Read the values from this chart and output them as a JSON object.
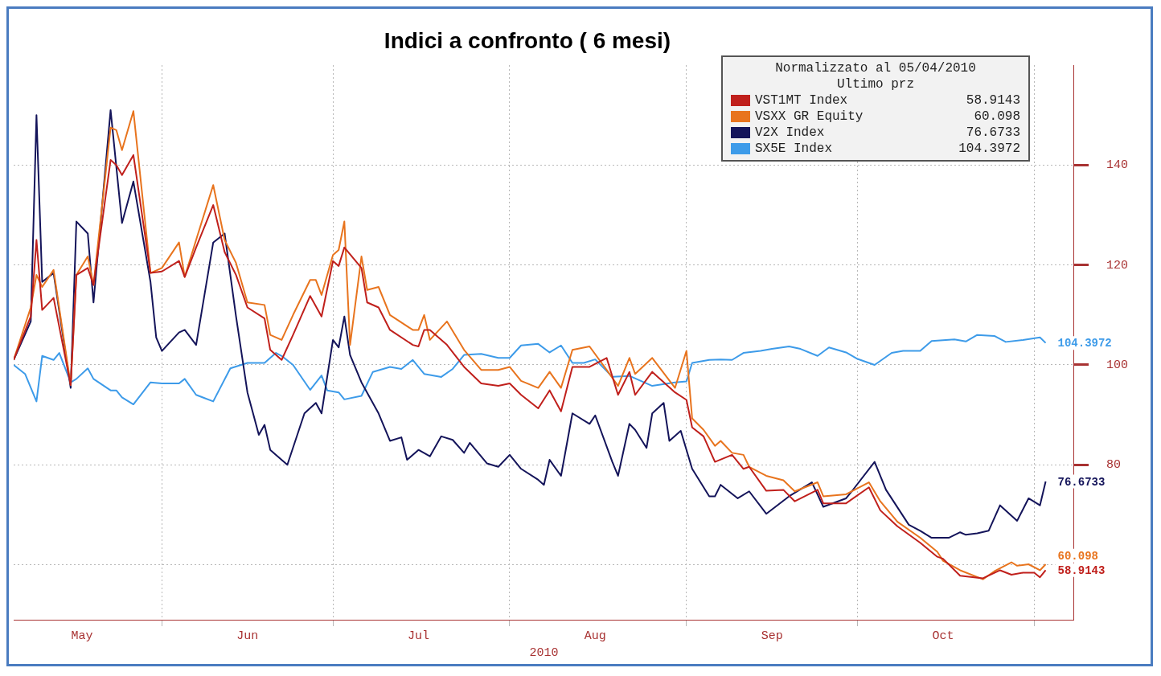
{
  "chart_data": {
    "type": "line",
    "title": "Indici a confronto ( 6 mesi)",
    "xlabel": "2010",
    "legend_title": "Normalizzato al 05/04/2010\nUltimo prz",
    "legend": "top right",
    "grid": true,
    "xlim": [
      "2010-05-06",
      "2010-11-08"
    ],
    "xticks": [
      {
        "value": "2010-05-18",
        "label": "May"
      },
      {
        "value": "2010-06-01",
        "label": null
      },
      {
        "value": "2010-06-16",
        "label": "Jun"
      },
      {
        "value": "2010-07-01",
        "label": null
      },
      {
        "value": "2010-07-16",
        "label": "Jul"
      },
      {
        "value": "2010-08-01",
        "label": null
      },
      {
        "value": "2010-08-16",
        "label": "Aug"
      },
      {
        "value": "2010-09-01",
        "label": null
      },
      {
        "value": "2010-09-16",
        "label": "Sep"
      },
      {
        "value": "2010-10-01",
        "label": null
      },
      {
        "value": "2010-10-16",
        "label": "Oct"
      },
      {
        "value": "2010-11-01",
        "label": null
      }
    ],
    "ylim": [
      49,
      160
    ],
    "yticks": [
      {
        "value": 60,
        "label": null
      },
      80,
      100,
      120,
      140
    ],
    "series": [
      {
        "name": "VST1MT Index",
        "color": "#c0201c",
        "x": [
          "2010-05-06",
          "2010-05-09",
          "2010-05-10",
          "2010-05-11",
          "2010-05-13",
          "2010-05-16",
          "2010-05-17",
          "2010-05-19",
          "2010-05-20",
          "2010-05-23",
          "2010-05-24",
          "2010-05-25",
          "2010-05-27",
          "2010-05-30",
          "2010-06-01",
          "2010-06-04",
          "2010-06-05",
          "2010-06-07",
          "2010-06-10",
          "2010-06-12",
          "2010-06-14",
          "2010-06-16",
          "2010-06-19",
          "2010-06-20",
          "2010-06-22",
          "2010-06-24",
          "2010-06-27",
          "2010-06-29",
          "2010-07-01",
          "2010-07-02",
          "2010-07-03",
          "2010-07-06",
          "2010-07-07",
          "2010-07-09",
          "2010-07-11",
          "2010-07-15",
          "2010-07-16",
          "2010-07-17",
          "2010-07-18",
          "2010-07-21",
          "2010-07-24",
          "2010-07-27",
          "2010-07-30",
          "2010-08-01",
          "2010-08-03",
          "2010-08-06",
          "2010-08-08",
          "2010-08-10",
          "2010-08-12",
          "2010-08-15",
          "2010-08-18",
          "2010-08-20",
          "2010-08-22",
          "2010-08-23",
          "2010-08-26",
          "2010-08-30",
          "2010-09-01",
          "2010-09-02",
          "2010-09-04",
          "2010-09-06",
          "2010-09-09",
          "2010-09-11",
          "2010-09-12",
          "2010-09-15",
          "2010-09-18",
          "2010-09-20",
          "2010-09-24",
          "2010-09-25",
          "2010-09-29",
          "2010-10-03",
          "2010-10-05",
          "2010-10-08",
          "2010-10-12",
          "2010-10-15",
          "2010-10-16",
          "2010-10-19",
          "2010-10-23",
          "2010-10-26",
          "2010-10-28",
          "2010-10-30",
          "2010-11-01",
          "2010-11-02",
          "2010-11-03"
        ],
        "values": [
          101,
          109.7,
          125,
          111,
          113.4,
          96,
          118,
          119.4,
          116,
          141,
          140,
          138,
          142,
          118.4,
          118.7,
          120.8,
          117.6,
          123.5,
          132,
          122.6,
          118,
          111.5,
          109.3,
          103,
          101,
          106,
          113.8,
          109.7,
          120.8,
          119.8,
          123.5,
          119.4,
          112.5,
          111.5,
          107,
          104,
          103.7,
          107,
          107,
          104,
          99.6,
          96.3,
          95.8,
          96.3,
          94,
          91.3,
          94.9,
          90.7,
          99.6,
          99.6,
          101.4,
          94,
          98.6,
          94,
          98.6,
          94.5,
          93,
          87.5,
          85.7,
          80.6,
          82,
          79.2,
          79.6,
          74.8,
          75,
          72.7,
          75,
          72.3,
          72.3,
          75.5,
          70.9,
          67.7,
          64.4,
          61.6,
          61.2,
          57.8,
          57.3,
          58.9,
          58,
          58.4,
          58.4,
          57.5,
          58.9143
        ],
        "value_labels": [
          null,
          null,
          null,
          null,
          null,
          null,
          null,
          null,
          null,
          null,
          null,
          null,
          null,
          null,
          null,
          null,
          null,
          null,
          null,
          null,
          null,
          null,
          null,
          null,
          null,
          null,
          null,
          null,
          null,
          null,
          null,
          null,
          null,
          null,
          null,
          null,
          null,
          null,
          null,
          null,
          null,
          null,
          null,
          null,
          null,
          null,
          null,
          null,
          null,
          null,
          null,
          null,
          null,
          null,
          null,
          null,
          null,
          null,
          null,
          null,
          null,
          null,
          null,
          null,
          null,
          null,
          null,
          null,
          null,
          null,
          null,
          null,
          null,
          null,
          null,
          null,
          null,
          null,
          null,
          null,
          null,
          null,
          "58.9143"
        ]
      },
      {
        "name": "VSXX GR Equity",
        "color": "#e8741e",
        "x": [
          "2010-05-06",
          "2010-05-09",
          "2010-05-10",
          "2010-05-11",
          "2010-05-13",
          "2010-05-16",
          "2010-05-17",
          "2010-05-19",
          "2010-05-20",
          "2010-05-23",
          "2010-05-24",
          "2010-05-25",
          "2010-05-27",
          "2010-05-30",
          "2010-06-01",
          "2010-06-04",
          "2010-06-05",
          "2010-06-07",
          "2010-06-10",
          "2010-06-12",
          "2010-06-14",
          "2010-06-16",
          "2010-06-19",
          "2010-06-20",
          "2010-06-22",
          "2010-06-24",
          "2010-06-27",
          "2010-06-28",
          "2010-06-29",
          "2010-07-01",
          "2010-07-02",
          "2010-07-03",
          "2010-07-04",
          "2010-07-06",
          "2010-07-07",
          "2010-07-09",
          "2010-07-11",
          "2010-07-15",
          "2010-07-16",
          "2010-07-17",
          "2010-07-18",
          "2010-07-21",
          "2010-07-24",
          "2010-07-27",
          "2010-07-30",
          "2010-08-01",
          "2010-08-03",
          "2010-08-06",
          "2010-08-08",
          "2010-08-10",
          "2010-08-12",
          "2010-08-15",
          "2010-08-18",
          "2010-08-20",
          "2010-08-22",
          "2010-08-23",
          "2010-08-26",
          "2010-08-30",
          "2010-09-01",
          "2010-09-02",
          "2010-09-04",
          "2010-09-06",
          "2010-09-07",
          "2010-09-09",
          "2010-09-11",
          "2010-09-12",
          "2010-09-15",
          "2010-09-18",
          "2010-09-20",
          "2010-09-24",
          "2010-09-25",
          "2010-09-29",
          "2010-10-03",
          "2010-10-05",
          "2010-10-08",
          "2010-10-12",
          "2010-10-15",
          "2010-10-16",
          "2010-10-19",
          "2010-10-23",
          "2010-10-25",
          "2010-10-28",
          "2010-10-29",
          "2010-10-31",
          "2010-11-02",
          "2010-11-03"
        ],
        "values": [
          101,
          111.5,
          118,
          115.6,
          119,
          96,
          118,
          121.7,
          116,
          147.5,
          147,
          143,
          150.8,
          118.4,
          119.4,
          124.5,
          117.6,
          125,
          136,
          125,
          120.4,
          112.5,
          112,
          106,
          105,
          110,
          117,
          117,
          114,
          122,
          123,
          128.7,
          104,
          121.7,
          115,
          115.6,
          110,
          107,
          107,
          110,
          105,
          108.7,
          103,
          99,
          99,
          99.6,
          96.8,
          95.4,
          98.6,
          95.4,
          103,
          103.7,
          99,
          95.8,
          101.4,
          98.2,
          101.4,
          95.4,
          102.8,
          89.3,
          87,
          83.8,
          84.8,
          82.4,
          82,
          79.6,
          77.8,
          76.9,
          74.7,
          76.5,
          73.7,
          74.1,
          76.5,
          72.7,
          68.6,
          65.4,
          62.6,
          60.8,
          58.9,
          57.1,
          58.7,
          60.5,
          59.8,
          60.1,
          58.9,
          60.098
        ],
        "value_labels": [
          null,
          null,
          null,
          null,
          null,
          null,
          null,
          null,
          null,
          null,
          null,
          null,
          null,
          null,
          null,
          null,
          null,
          null,
          null,
          null,
          null,
          null,
          null,
          null,
          null,
          null,
          null,
          null,
          null,
          null,
          null,
          null,
          null,
          null,
          null,
          null,
          null,
          null,
          null,
          null,
          null,
          null,
          null,
          null,
          null,
          null,
          null,
          null,
          null,
          null,
          null,
          null,
          null,
          null,
          null,
          null,
          null,
          null,
          null,
          null,
          null,
          null,
          null,
          null,
          null,
          null,
          null,
          null,
          null,
          null,
          null,
          null,
          null,
          null,
          null,
          null,
          null,
          null,
          null,
          null,
          null,
          null,
          null,
          null,
          null,
          "60.098"
        ]
      },
      {
        "name": "V2X Index",
        "color": "#14145a",
        "x": [
          "2010-05-06",
          "2010-05-09",
          "2010-05-10",
          "2010-05-11",
          "2010-05-13",
          "2010-05-16",
          "2010-05-17",
          "2010-05-19",
          "2010-05-20",
          "2010-05-23",
          "2010-05-25",
          "2010-05-27",
          "2010-05-30",
          "2010-05-31",
          "2010-06-01",
          "2010-06-04",
          "2010-06-05",
          "2010-06-07",
          "2010-06-10",
          "2010-06-12",
          "2010-06-14",
          "2010-06-16",
          "2010-06-18",
          "2010-06-19",
          "2010-06-20",
          "2010-06-23",
          "2010-06-26",
          "2010-06-28",
          "2010-06-29",
          "2010-07-01",
          "2010-07-02",
          "2010-07-03",
          "2010-07-04",
          "2010-07-06",
          "2010-07-09",
          "2010-07-11",
          "2010-07-13",
          "2010-07-14",
          "2010-07-16",
          "2010-07-18",
          "2010-07-20",
          "2010-07-22",
          "2010-07-24",
          "2010-07-25",
          "2010-07-28",
          "2010-07-30",
          "2010-08-01",
          "2010-08-03",
          "2010-08-06",
          "2010-08-07",
          "2010-08-08",
          "2010-08-10",
          "2010-08-12",
          "2010-08-15",
          "2010-08-16",
          "2010-08-19",
          "2010-08-20",
          "2010-08-22",
          "2010-08-23",
          "2010-08-25",
          "2010-08-26",
          "2010-08-28",
          "2010-08-29",
          "2010-08-31",
          "2010-09-02",
          "2010-09-05",
          "2010-09-06",
          "2010-09-07",
          "2010-09-10",
          "2010-09-12",
          "2010-09-15",
          "2010-09-19",
          "2010-09-23",
          "2010-09-25",
          "2010-09-29",
          "2010-09-30",
          "2010-10-04",
          "2010-10-06",
          "2010-10-10",
          "2010-10-12",
          "2010-10-14",
          "2010-10-17",
          "2010-10-19",
          "2010-10-20",
          "2010-10-22",
          "2010-10-24",
          "2010-10-26",
          "2010-10-29",
          "2010-10-31",
          "2010-11-02",
          "2010-11-03"
        ],
        "values": [
          101,
          108.7,
          150,
          116.6,
          118.4,
          95.4,
          128.7,
          126.3,
          112.5,
          151,
          128.4,
          136.7,
          116.6,
          105.5,
          102.8,
          106.5,
          107,
          104,
          124.5,
          126.3,
          109.7,
          94.5,
          86,
          88,
          83,
          80,
          90.3,
          92.4,
          90.3,
          105,
          103.5,
          109.7,
          102,
          96.5,
          90.3,
          84.8,
          85.5,
          81,
          83,
          81.7,
          85.7,
          85,
          82.4,
          84.4,
          80.3,
          79.6,
          82,
          79.2,
          77,
          76,
          81,
          77.8,
          90.3,
          88.2,
          89.9,
          80.6,
          77.8,
          88.2,
          87,
          83.4,
          90.3,
          92.4,
          84.8,
          86.8,
          79.2,
          73.7,
          73.7,
          76,
          73.3,
          74.7,
          70.2,
          73.7,
          76.5,
          71.6,
          73.3,
          74.7,
          80.6,
          75,
          68,
          66.8,
          65.4,
          65.4,
          66.5,
          66,
          66.3,
          66.8,
          71.9,
          68.8,
          73.3,
          71.9,
          76.6733
        ],
        "value_labels": [
          null,
          null,
          null,
          null,
          null,
          null,
          null,
          null,
          null,
          null,
          null,
          null,
          null,
          null,
          null,
          null,
          null,
          null,
          null,
          null,
          null,
          null,
          null,
          null,
          null,
          null,
          null,
          null,
          null,
          null,
          null,
          null,
          null,
          null,
          null,
          null,
          null,
          null,
          null,
          null,
          null,
          null,
          null,
          null,
          null,
          null,
          null,
          null,
          null,
          null,
          null,
          null,
          null,
          null,
          null,
          null,
          null,
          null,
          null,
          null,
          null,
          null,
          null,
          null,
          null,
          null,
          null,
          null,
          null,
          null,
          null,
          null,
          null,
          null,
          null,
          null,
          null,
          null,
          null,
          null,
          null,
          null,
          null,
          null,
          null,
          null,
          null,
          null,
          null,
          null,
          "76.6733"
        ]
      },
      {
        "name": "SX5E Index",
        "color": "#3d9be9",
        "x": [
          "2010-05-06",
          "2010-05-08",
          "2010-05-10",
          "2010-05-11",
          "2010-05-13",
          "2010-05-14",
          "2010-05-16",
          "2010-05-17",
          "2010-05-19",
          "2010-05-20",
          "2010-05-23",
          "2010-05-24",
          "2010-05-25",
          "2010-05-27",
          "2010-05-30",
          "2010-06-01",
          "2010-06-04",
          "2010-06-05",
          "2010-06-07",
          "2010-06-10",
          "2010-06-13",
          "2010-06-16",
          "2010-06-19",
          "2010-06-21",
          "2010-06-22",
          "2010-06-24",
          "2010-06-27",
          "2010-06-29",
          "2010-06-30",
          "2010-07-02",
          "2010-07-03",
          "2010-07-06",
          "2010-07-08",
          "2010-07-11",
          "2010-07-13",
          "2010-07-15",
          "2010-07-17",
          "2010-07-20",
          "2010-07-22",
          "2010-07-24",
          "2010-07-27",
          "2010-07-30",
          "2010-08-01",
          "2010-08-03",
          "2010-08-06",
          "2010-08-08",
          "2010-08-10",
          "2010-08-12",
          "2010-08-14",
          "2010-08-16",
          "2010-08-19",
          "2010-08-22",
          "2010-08-26",
          "2010-08-30",
          "2010-09-01",
          "2010-09-02",
          "2010-09-05",
          "2010-09-07",
          "2010-09-09",
          "2010-09-11",
          "2010-09-14",
          "2010-09-16",
          "2010-09-19",
          "2010-09-21",
          "2010-09-24",
          "2010-09-26",
          "2010-09-29",
          "2010-10-01",
          "2010-10-04",
          "2010-10-07",
          "2010-10-09",
          "2010-10-12",
          "2010-10-14",
          "2010-10-18",
          "2010-10-20",
          "2010-10-22",
          "2010-10-25",
          "2010-10-27",
          "2010-10-30",
          "2010-11-02",
          "2010-11-03"
        ],
        "values": [
          100,
          98.2,
          92.7,
          101.8,
          101,
          102.4,
          96.5,
          97.2,
          99.3,
          97.2,
          94.9,
          94.9,
          93.5,
          92.1,
          96.5,
          96.3,
          96.3,
          97.2,
          94,
          92.7,
          99.3,
          100.4,
          100.4,
          102.4,
          101.8,
          100,
          95,
          97.9,
          94.9,
          94.5,
          93.1,
          93.8,
          98.6,
          99.6,
          99.2,
          101,
          98.2,
          97.6,
          99.2,
          102,
          102.2,
          101.4,
          101.4,
          103.9,
          104.2,
          102.5,
          103.9,
          100.4,
          100.4,
          101.1,
          97.6,
          97.8,
          95.8,
          96.5,
          96.7,
          100.4,
          101,
          101.1,
          101,
          102.4,
          102.8,
          103.2,
          103.7,
          103.2,
          101.8,
          103.5,
          102.5,
          101.2,
          100,
          102.4,
          102.8,
          102.8,
          104.8,
          105.1,
          104.7,
          106,
          105.8,
          104.6,
          105,
          105.5,
          104.3972
        ],
        "value_labels": [
          null,
          null,
          null,
          null,
          null,
          null,
          null,
          null,
          null,
          null,
          null,
          null,
          null,
          null,
          null,
          null,
          null,
          null,
          null,
          null,
          null,
          null,
          null,
          null,
          null,
          null,
          null,
          null,
          null,
          null,
          null,
          null,
          null,
          null,
          null,
          null,
          null,
          null,
          null,
          null,
          null,
          null,
          null,
          null,
          null,
          null,
          null,
          null,
          null,
          null,
          null,
          null,
          null,
          null,
          null,
          null,
          null,
          null,
          null,
          null,
          null,
          null,
          null,
          null,
          null,
          null,
          null,
          null,
          null,
          null,
          null,
          null,
          null,
          null,
          null,
          null,
          null,
          null,
          null,
          null,
          "104.3972"
        ]
      }
    ]
  }
}
